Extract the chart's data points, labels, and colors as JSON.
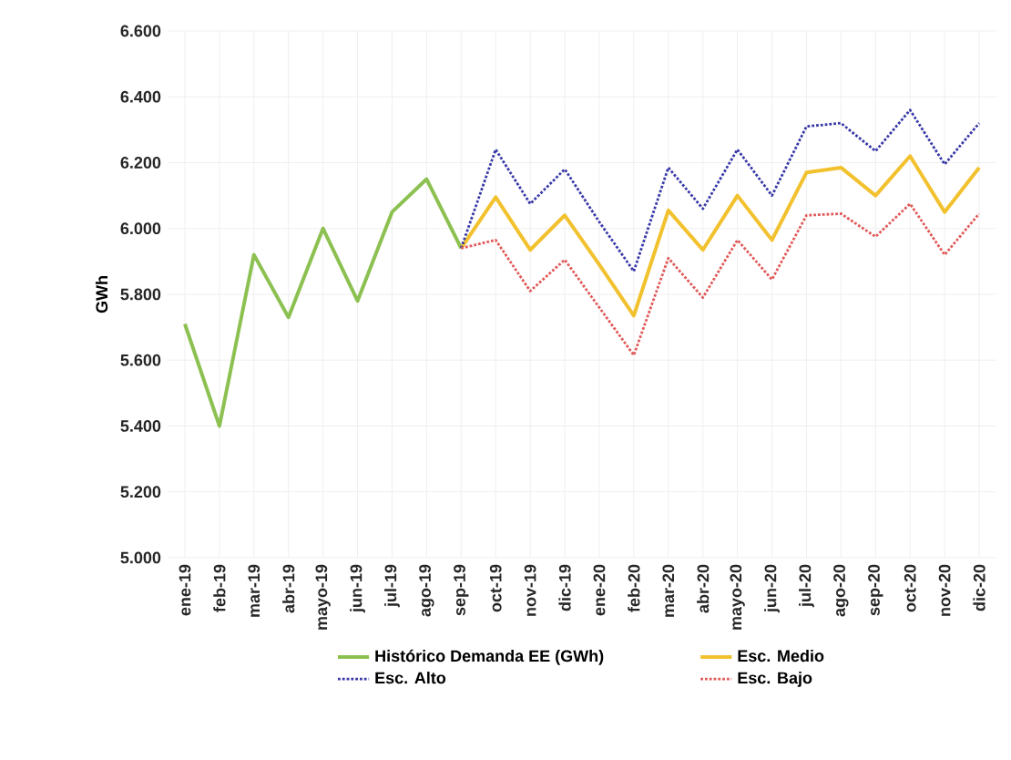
{
  "chart_data": {
    "type": "line",
    "ylabel": "GWh",
    "categories": [
      "ene-19",
      "feb-19",
      "mar-19",
      "abr-19",
      "mayo-19",
      "jun-19",
      "jul-19",
      "ago-19",
      "sep-19",
      "oct-19",
      "nov-19",
      "dic-19",
      "ene-20",
      "feb-20",
      "mar-20",
      "abr-20",
      "mayo-20",
      "jun-20",
      "jul-20",
      "ago-20",
      "sep-20",
      "oct-20",
      "nov-20",
      "dic-20"
    ],
    "series": [
      {
        "name": "Histórico Demanda EE (GWh)",
        "color": "#8cc152",
        "line_style": "solid",
        "values": [
          5710,
          5400,
          5920,
          5730,
          6000,
          5780,
          6050,
          6150,
          5940,
          null,
          null,
          null,
          null,
          null,
          null,
          null,
          null,
          null,
          null,
          null,
          null,
          null,
          null,
          null
        ]
      },
      {
        "name": "Esc. Medio",
        "color": "#f2c12e",
        "line_style": "solid",
        "values": [
          null,
          null,
          null,
          null,
          null,
          null,
          null,
          null,
          5940,
          6095,
          5935,
          6040,
          5890,
          5735,
          6055,
          5935,
          6100,
          5965,
          6170,
          6185,
          6100,
          6220,
          6050,
          6185
        ]
      },
      {
        "name": "Esc. Alto",
        "color": "#3a3aa8",
        "line_style": "dotted",
        "values": [
          null,
          null,
          null,
          null,
          null,
          null,
          null,
          null,
          5940,
          6240,
          6075,
          6180,
          6020,
          5870,
          6185,
          6060,
          6240,
          6100,
          6310,
          6320,
          6235,
          6360,
          6195,
          6320
        ]
      },
      {
        "name": "Esc. Bajo",
        "color": "#e05a5a",
        "line_style": "dotted",
        "values": [
          null,
          null,
          null,
          null,
          null,
          null,
          null,
          null,
          5940,
          5965,
          5810,
          5905,
          5760,
          5615,
          5910,
          5790,
          5965,
          5845,
          6040,
          6045,
          5975,
          6075,
          5920,
          6045
        ]
      }
    ],
    "ylim": [
      5000,
      6600
    ],
    "yticks": [
      {
        "value": 5000,
        "label": "5.000"
      },
      {
        "value": 5200,
        "label": "5.200"
      },
      {
        "value": 5400,
        "label": "5.400"
      },
      {
        "value": 5600,
        "label": "5.600"
      },
      {
        "value": 5800,
        "label": "5.800"
      },
      {
        "value": 6000,
        "label": "6.000"
      },
      {
        "value": 6200,
        "label": "6.200"
      },
      {
        "value": 6400,
        "label": "6.400"
      },
      {
        "value": 6600,
        "label": "6.600"
      }
    ],
    "grid": true,
    "legend": "bottom",
    "marker": "none"
  }
}
